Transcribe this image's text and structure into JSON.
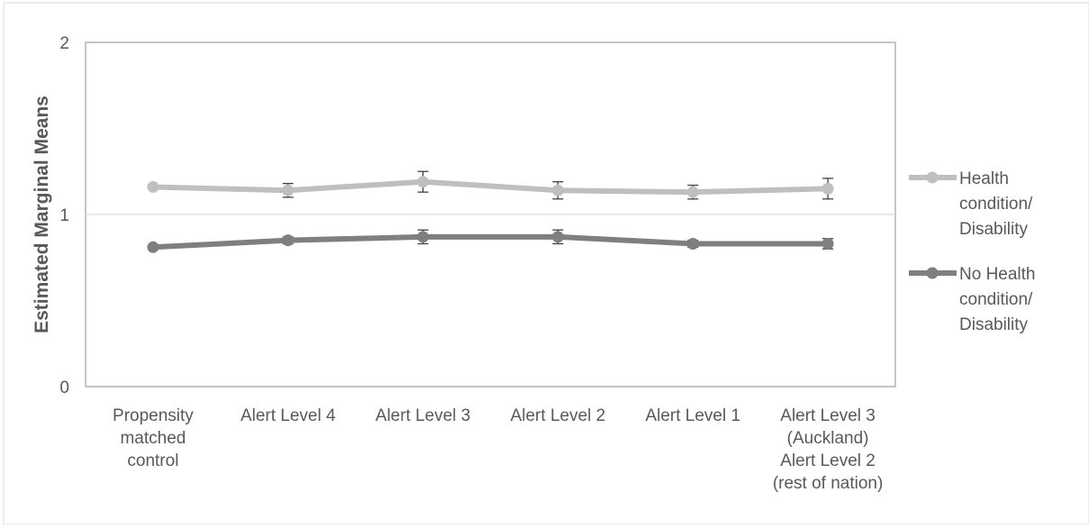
{
  "chart_data": {
    "type": "line",
    "title": "",
    "xlabel": "",
    "ylabel": "Estimated Marginal Means",
    "ylim": [
      0,
      2
    ],
    "yticks": [
      0,
      1,
      2
    ],
    "grid": "horizontal gridline at 1",
    "legend_position": "right",
    "categories": [
      [
        "Propensity",
        "matched",
        "control"
      ],
      [
        "Alert Level 4"
      ],
      [
        "Alert Level 3"
      ],
      [
        "Alert Level 2"
      ],
      [
        "Alert Level 1"
      ],
      [
        "Alert Level 3",
        "(Auckland)",
        "Alert Level 2",
        "(rest of nation)"
      ]
    ],
    "series": [
      {
        "name": [
          "Health",
          "condition/",
          "Disability"
        ],
        "color": "#BFBFBF",
        "values": [
          1.16,
          1.14,
          1.19,
          1.14,
          1.13,
          1.15
        ],
        "error": [
          0.0,
          0.04,
          0.06,
          0.05,
          0.04,
          0.06
        ]
      },
      {
        "name": [
          "No Health",
          "condition/",
          "Disability"
        ],
        "color": "#7F7F7F",
        "values": [
          0.81,
          0.85,
          0.87,
          0.87,
          0.83,
          0.83
        ],
        "error": [
          0.0,
          0.02,
          0.04,
          0.04,
          0.02,
          0.03
        ]
      }
    ]
  }
}
